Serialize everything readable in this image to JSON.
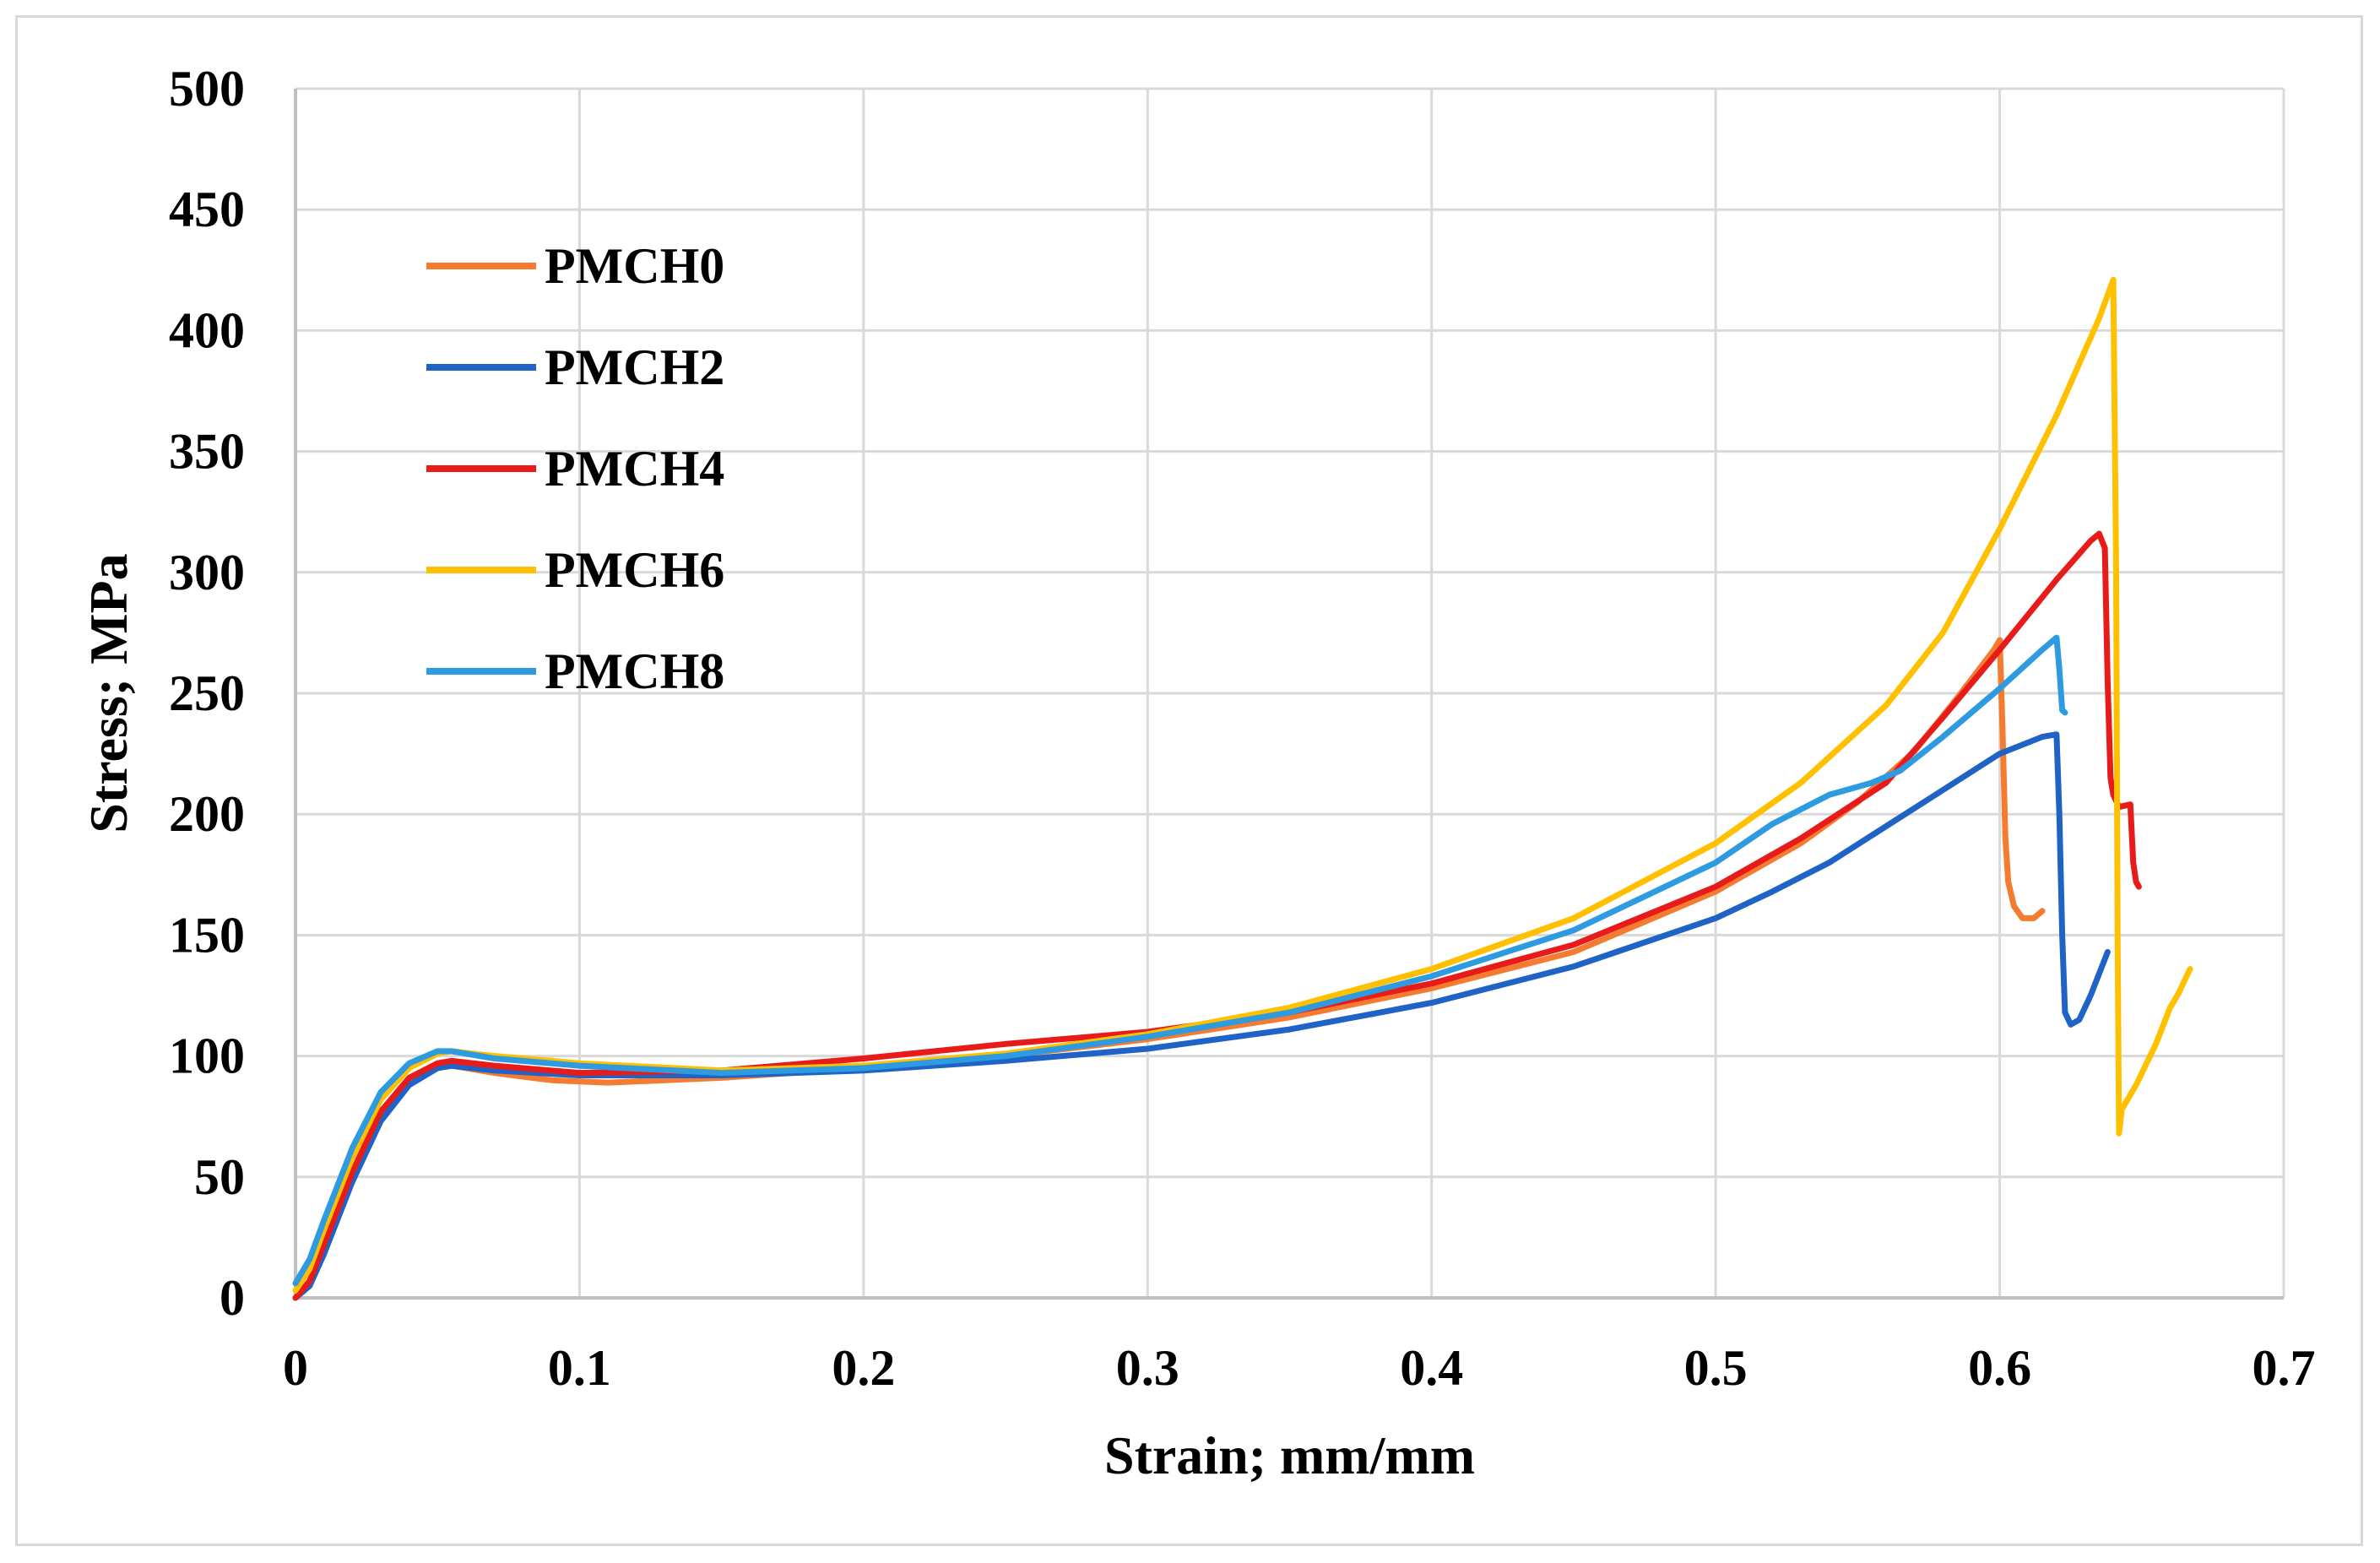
{
  "chart_data": {
    "type": "line",
    "xlabel": "Strain; mm/mm",
    "ylabel": "Stress; MPa",
    "xlim": [
      0,
      0.7
    ],
    "ylim": [
      0,
      500
    ],
    "x_ticks": [
      "0",
      "0.1",
      "0.2",
      "0.3",
      "0.4",
      "0.5",
      "0.6",
      "0.7"
    ],
    "y_ticks": [
      "0",
      "50",
      "100",
      "150",
      "200",
      "250",
      "300",
      "350",
      "400",
      "450",
      "500"
    ],
    "grid": true,
    "legend_position": "top-left",
    "series": [
      {
        "name": "PMCH0",
        "color": "#f47b2f",
        "points": [
          [
            0,
            0
          ],
          [
            0.005,
            5
          ],
          [
            0.01,
            20
          ],
          [
            0.02,
            50
          ],
          [
            0.03,
            75
          ],
          [
            0.04,
            89
          ],
          [
            0.05,
            95
          ],
          [
            0.055,
            96
          ],
          [
            0.07,
            93
          ],
          [
            0.09,
            90
          ],
          [
            0.11,
            89
          ],
          [
            0.15,
            91
          ],
          [
            0.2,
            95
          ],
          [
            0.25,
            100
          ],
          [
            0.3,
            107
          ],
          [
            0.35,
            116
          ],
          [
            0.4,
            128
          ],
          [
            0.45,
            143
          ],
          [
            0.5,
            168
          ],
          [
            0.53,
            188
          ],
          [
            0.55,
            205
          ],
          [
            0.57,
            226
          ],
          [
            0.585,
            248
          ],
          [
            0.598,
            268
          ],
          [
            0.6,
            272
          ],
          [
            0.601,
            235
          ],
          [
            0.602,
            190
          ],
          [
            0.603,
            172
          ],
          [
            0.605,
            162
          ],
          [
            0.608,
            157
          ],
          [
            0.612,
            157
          ],
          [
            0.615,
            160
          ]
        ]
      },
      {
        "name": "PMCH2",
        "color": "#1f63c6",
        "points": [
          [
            0,
            0
          ],
          [
            0.005,
            5
          ],
          [
            0.01,
            18
          ],
          [
            0.02,
            48
          ],
          [
            0.03,
            73
          ],
          [
            0.04,
            88
          ],
          [
            0.05,
            95
          ],
          [
            0.055,
            96
          ],
          [
            0.07,
            94
          ],
          [
            0.1,
            92
          ],
          [
            0.15,
            92
          ],
          [
            0.2,
            94
          ],
          [
            0.25,
            98
          ],
          [
            0.3,
            103
          ],
          [
            0.35,
            111
          ],
          [
            0.4,
            122
          ],
          [
            0.45,
            137
          ],
          [
            0.5,
            157
          ],
          [
            0.52,
            168
          ],
          [
            0.54,
            180
          ],
          [
            0.56,
            195
          ],
          [
            0.58,
            210
          ],
          [
            0.6,
            225
          ],
          [
            0.615,
            232
          ],
          [
            0.62,
            233
          ],
          [
            0.621,
            200
          ],
          [
            0.622,
            150
          ],
          [
            0.623,
            118
          ],
          [
            0.625,
            113
          ],
          [
            0.628,
            115
          ],
          [
            0.632,
            125
          ],
          [
            0.638,
            143
          ]
        ]
      },
      {
        "name": "PMCH4",
        "color": "#e81b1b",
        "points": [
          [
            0,
            0
          ],
          [
            0.005,
            7
          ],
          [
            0.01,
            22
          ],
          [
            0.02,
            52
          ],
          [
            0.03,
            77
          ],
          [
            0.04,
            91
          ],
          [
            0.05,
            97
          ],
          [
            0.055,
            98
          ],
          [
            0.07,
            96
          ],
          [
            0.1,
            93
          ],
          [
            0.15,
            94
          ],
          [
            0.2,
            99
          ],
          [
            0.25,
            105
          ],
          [
            0.3,
            110
          ],
          [
            0.35,
            118
          ],
          [
            0.4,
            130
          ],
          [
            0.45,
            146
          ],
          [
            0.5,
            170
          ],
          [
            0.53,
            190
          ],
          [
            0.56,
            213
          ],
          [
            0.58,
            240
          ],
          [
            0.6,
            268
          ],
          [
            0.62,
            297
          ],
          [
            0.632,
            313
          ],
          [
            0.635,
            316
          ],
          [
            0.637,
            310
          ],
          [
            0.638,
            255
          ],
          [
            0.639,
            215
          ],
          [
            0.64,
            208
          ],
          [
            0.642,
            203
          ],
          [
            0.646,
            204
          ],
          [
            0.647,
            180
          ],
          [
            0.648,
            172
          ],
          [
            0.649,
            170
          ]
        ]
      },
      {
        "name": "PMCH6",
        "color": "#ffc000",
        "points": [
          [
            0,
            3
          ],
          [
            0.005,
            12
          ],
          [
            0.01,
            28
          ],
          [
            0.02,
            58
          ],
          [
            0.03,
            82
          ],
          [
            0.04,
            95
          ],
          [
            0.05,
            101
          ],
          [
            0.055,
            102
          ],
          [
            0.07,
            100
          ],
          [
            0.1,
            97
          ],
          [
            0.15,
            94
          ],
          [
            0.2,
            96
          ],
          [
            0.25,
            101
          ],
          [
            0.3,
            109
          ],
          [
            0.35,
            120
          ],
          [
            0.4,
            136
          ],
          [
            0.45,
            157
          ],
          [
            0.5,
            188
          ],
          [
            0.53,
            213
          ],
          [
            0.56,
            245
          ],
          [
            0.58,
            275
          ],
          [
            0.6,
            318
          ],
          [
            0.62,
            365
          ],
          [
            0.635,
            405
          ],
          [
            0.64,
            421
          ],
          [
            0.641,
            300
          ],
          [
            0.6415,
            150
          ],
          [
            0.642,
            68
          ],
          [
            0.643,
            78
          ],
          [
            0.648,
            88
          ],
          [
            0.655,
            105
          ],
          [
            0.66,
            120
          ],
          [
            0.663,
            126
          ],
          [
            0.667,
            136
          ]
        ]
      },
      {
        "name": "PMCH8",
        "color": "#2e9be0",
        "points": [
          [
            0,
            6
          ],
          [
            0.005,
            16
          ],
          [
            0.01,
            32
          ],
          [
            0.02,
            62
          ],
          [
            0.03,
            85
          ],
          [
            0.04,
            97
          ],
          [
            0.05,
            102
          ],
          [
            0.055,
            102
          ],
          [
            0.07,
            99
          ],
          [
            0.1,
            96
          ],
          [
            0.15,
            93
          ],
          [
            0.2,
            95
          ],
          [
            0.25,
            100
          ],
          [
            0.3,
            108
          ],
          [
            0.35,
            118
          ],
          [
            0.4,
            133
          ],
          [
            0.45,
            152
          ],
          [
            0.5,
            180
          ],
          [
            0.52,
            196
          ],
          [
            0.54,
            208
          ],
          [
            0.555,
            213
          ],
          [
            0.565,
            218
          ],
          [
            0.58,
            232
          ],
          [
            0.6,
            252
          ],
          [
            0.615,
            268
          ],
          [
            0.62,
            273
          ],
          [
            0.621,
            260
          ],
          [
            0.622,
            243
          ],
          [
            0.623,
            242
          ]
        ]
      }
    ]
  }
}
